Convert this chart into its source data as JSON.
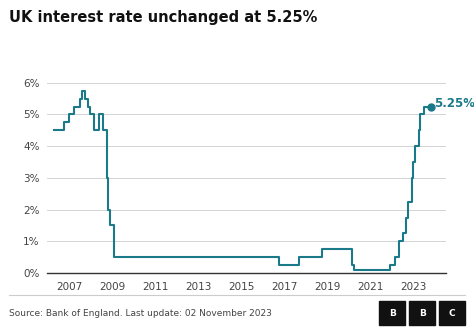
{
  "title": "UK interest rate unchanged at 5.25%",
  "source_text": "Source: Bank of England. Last update: 02 November 2023",
  "line_color": "#1a7a8a",
  "annotation_label": "5.25%",
  "annotation_color": "#1a7a8a",
  "background_color": "#ffffff",
  "grid_color": "#cccccc",
  "ylim": [
    0,
    0.063
  ],
  "yticks": [
    0,
    0.01,
    0.02,
    0.03,
    0.04,
    0.05,
    0.06
  ],
  "ytick_labels": [
    "0%",
    "1%",
    "2%",
    "3%",
    "4%",
    "5%",
    "6%"
  ],
  "xlim_start": 2006.0,
  "xlim_end": 2024.5,
  "xticks": [
    2007,
    2009,
    2011,
    2013,
    2015,
    2017,
    2019,
    2021,
    2023
  ],
  "data": [
    [
      2006.25,
      0.045
    ],
    [
      2006.75,
      0.045
    ],
    [
      2006.75,
      0.0475
    ],
    [
      2007.0,
      0.0475
    ],
    [
      2007.0,
      0.05
    ],
    [
      2007.25,
      0.05
    ],
    [
      2007.25,
      0.0525
    ],
    [
      2007.5,
      0.0525
    ],
    [
      2007.5,
      0.055
    ],
    [
      2007.6,
      0.055
    ],
    [
      2007.6,
      0.0575
    ],
    [
      2007.75,
      0.0575
    ],
    [
      2007.75,
      0.055
    ],
    [
      2007.9,
      0.055
    ],
    [
      2007.9,
      0.0525
    ],
    [
      2008.0,
      0.0525
    ],
    [
      2008.0,
      0.05
    ],
    [
      2008.17,
      0.05
    ],
    [
      2008.17,
      0.045
    ],
    [
      2008.42,
      0.045
    ],
    [
      2008.42,
      0.05
    ],
    [
      2008.58,
      0.05
    ],
    [
      2008.58,
      0.045
    ],
    [
      2008.75,
      0.045
    ],
    [
      2008.75,
      0.03
    ],
    [
      2008.83,
      0.03
    ],
    [
      2008.83,
      0.02
    ],
    [
      2008.92,
      0.02
    ],
    [
      2008.92,
      0.015
    ],
    [
      2009.08,
      0.015
    ],
    [
      2009.08,
      0.005
    ],
    [
      2009.25,
      0.005
    ],
    [
      2016.75,
      0.005
    ],
    [
      2016.75,
      0.0025
    ],
    [
      2017.67,
      0.0025
    ],
    [
      2017.67,
      0.005
    ],
    [
      2018.75,
      0.005
    ],
    [
      2018.75,
      0.0075
    ],
    [
      2020.17,
      0.0075
    ],
    [
      2020.17,
      0.0025
    ],
    [
      2020.25,
      0.0025
    ],
    [
      2020.25,
      0.001
    ],
    [
      2021.75,
      0.001
    ],
    [
      2021.92,
      0.001
    ],
    [
      2021.92,
      0.0025
    ],
    [
      2022.17,
      0.0025
    ],
    [
      2022.17,
      0.005
    ],
    [
      2022.33,
      0.005
    ],
    [
      2022.33,
      0.01
    ],
    [
      2022.5,
      0.01
    ],
    [
      2022.5,
      0.0125
    ],
    [
      2022.67,
      0.0125
    ],
    [
      2022.67,
      0.0175
    ],
    [
      2022.75,
      0.0175
    ],
    [
      2022.75,
      0.0225
    ],
    [
      2022.92,
      0.0225
    ],
    [
      2022.92,
      0.03
    ],
    [
      2023.0,
      0.03
    ],
    [
      2023.0,
      0.035
    ],
    [
      2023.08,
      0.035
    ],
    [
      2023.08,
      0.04
    ],
    [
      2023.25,
      0.04
    ],
    [
      2023.25,
      0.045
    ],
    [
      2023.33,
      0.045
    ],
    [
      2023.33,
      0.05
    ],
    [
      2023.5,
      0.05
    ],
    [
      2023.5,
      0.0525
    ],
    [
      2023.83,
      0.0525
    ]
  ]
}
